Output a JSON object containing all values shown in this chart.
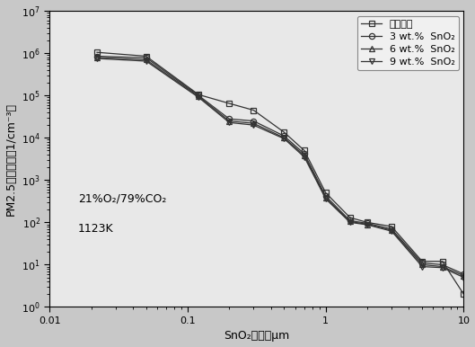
{
  "xlabel": "SnO₂粒径／μm",
  "ylabel": "PM2.5数量浓度（1/cm⁻³）",
  "annotation_line1": "21%O₂/79%CO₂",
  "annotation_line2": "1123K",
  "xlim": [
    0.01,
    10
  ],
  "ylim": [
    1,
    10000000.0
  ],
  "series": [
    {
      "label": "无添加剂",
      "marker": "s",
      "x": [
        0.022,
        0.05,
        0.12,
        0.2,
        0.3,
        0.5,
        0.7,
        1.0,
        1.5,
        2.0,
        3.0,
        5.0,
        7.0,
        10.0
      ],
      "y": [
        1050000.0,
        850000.0,
        105000.0,
        65000.0,
        45000.0,
        13500.0,
        5000,
        500,
        130,
        100,
        80,
        12,
        12,
        2
      ]
    },
    {
      "label": "3 wt.%  SnO₂",
      "marker": "o",
      "x": [
        0.022,
        0.05,
        0.12,
        0.2,
        0.3,
        0.5,
        0.7,
        1.0,
        1.5,
        2.0,
        3.0,
        5.0,
        7.0,
        10.0
      ],
      "y": [
        850000.0,
        780000.0,
        100000.0,
        28000.0,
        25000.0,
        11000.0,
        4200,
        420,
        110,
        95,
        70,
        11,
        10,
        6
      ]
    },
    {
      "label": "6 wt.%  SnO₂",
      "marker": "^",
      "x": [
        0.022,
        0.05,
        0.12,
        0.2,
        0.3,
        0.5,
        0.7,
        1.0,
        1.5,
        2.0,
        3.0,
        5.0,
        7.0,
        10.0
      ],
      "y": [
        800000.0,
        700000.0,
        95000.0,
        25000.0,
        22000.0,
        10000.0,
        3800,
        380,
        105,
        90,
        65,
        10,
        9,
        5.5
      ]
    },
    {
      "label": "9 wt.%  SnO₂",
      "marker": "v",
      "x": [
        0.022,
        0.05,
        0.12,
        0.2,
        0.3,
        0.5,
        0.7,
        1.0,
        1.5,
        2.0,
        3.0,
        5.0,
        7.0,
        10.0
      ],
      "y": [
        750000.0,
        650000.0,
        90000.0,
        23000.0,
        20000.0,
        9500,
        3500,
        360,
        100,
        88,
        62,
        9,
        8.5,
        5
      ]
    }
  ],
  "line_color": "#333333",
  "background_color": "#f0f0f0",
  "figure_bg": "#c8c8c8",
  "plot_bg": "#e8e8e8"
}
